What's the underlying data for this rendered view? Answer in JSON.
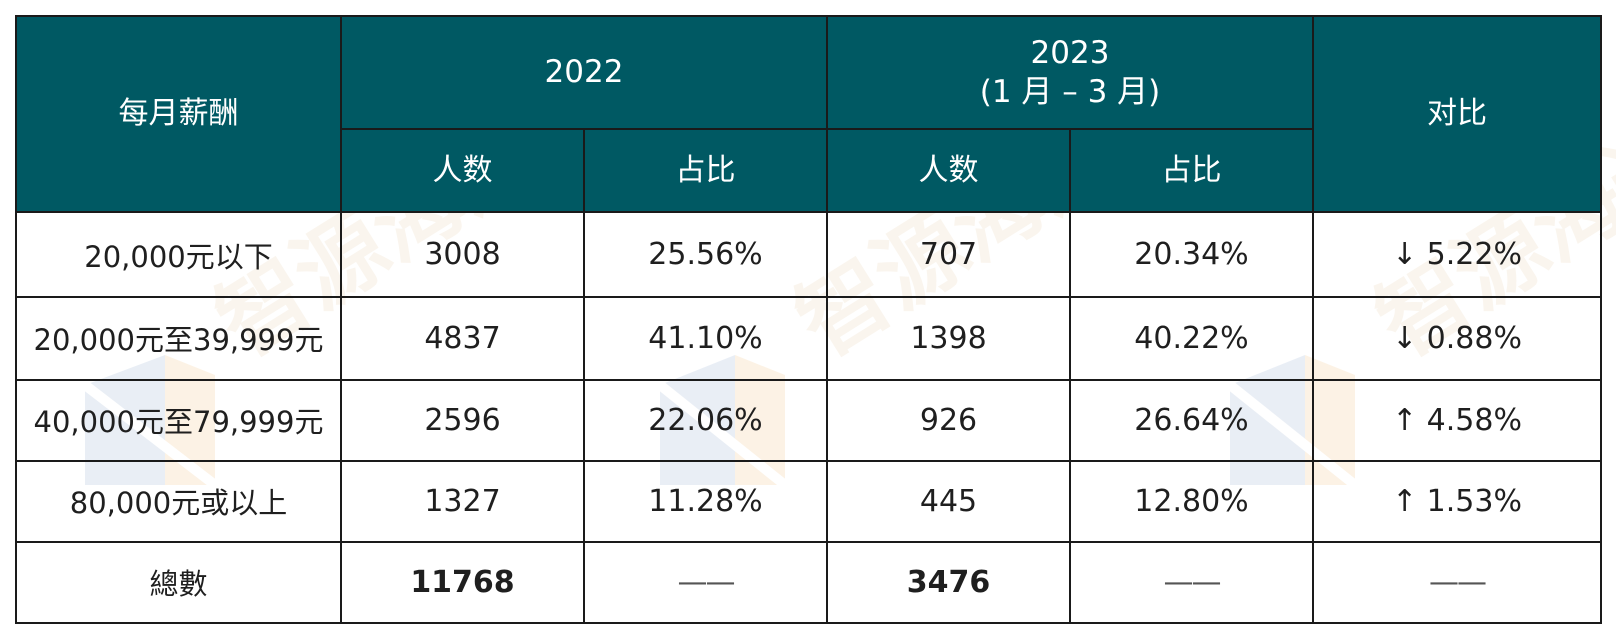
{
  "table": {
    "header": {
      "salary_label": "每月薪酬",
      "year_2022": "2022",
      "year_2023_line1": "2023",
      "year_2023_line2": "(1 月 – 3 月)",
      "compare_label": "对比",
      "count_label_2022": "人数",
      "share_label_2022": "占比",
      "count_label_2023": "人数",
      "share_label_2023": "占比"
    },
    "rows": [
      {
        "label": "20,000元以下",
        "count_2022": "3008",
        "share_2022": "25.56%",
        "count_2023": "707",
        "share_2023": "20.34%",
        "compare": "↓ 5.22%"
      },
      {
        "label": "20,000元至39,999元",
        "count_2022": "4837",
        "share_2022": "41.10%",
        "count_2023": "1398",
        "share_2023": "40.22%",
        "compare": "↓ 0.88%"
      },
      {
        "label": "40,000元至79,999元",
        "count_2022": "2596",
        "share_2022": "22.06%",
        "count_2023": "926",
        "share_2023": "26.64%",
        "compare": "↑ 4.58%"
      },
      {
        "label": "80,000元或以上",
        "count_2022": "1327",
        "share_2022": "11.28%",
        "count_2023": "445",
        "share_2023": "12.80%",
        "compare": "↑ 1.53%"
      }
    ],
    "total": {
      "label": "總數",
      "count_2022": "11768",
      "share_2022": "——",
      "count_2023": "3476",
      "share_2023": "——",
      "compare": "——"
    }
  },
  "watermark": {
    "text": "智源海通",
    "colors": {
      "orange": "#f3c98b",
      "blue": "#9fb6d6"
    }
  },
  "colors": {
    "header_bg": "#005963",
    "header_text": "#ffffff",
    "border": "#1a1a1a",
    "body_text": "#1f1f1f"
  }
}
